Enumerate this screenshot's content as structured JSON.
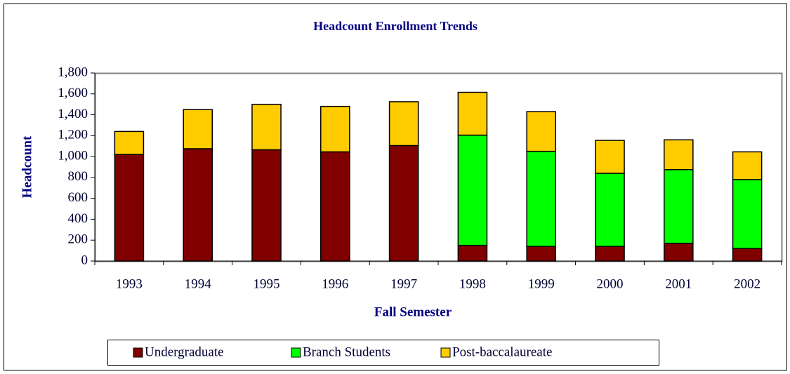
{
  "chart_data": {
    "type": "stacked_bar",
    "title": "Headcount Enrollment Trends",
    "x_label": "Fall Semester",
    "y_label": "Headcount",
    "categories": [
      "1993",
      "1994",
      "1995",
      "1996",
      "1997",
      "1998",
      "1999",
      "2000",
      "2001",
      "2002"
    ],
    "series": [
      {
        "name": "Undergraduate",
        "color": "#800000",
        "values": [
          1020,
          1075,
          1065,
          1045,
          1105,
          150,
          140,
          140,
          170,
          120
        ]
      },
      {
        "name": "Branch Students",
        "color": "#00ff00",
        "values": [
          0,
          0,
          0,
          0,
          0,
          1055,
          910,
          700,
          705,
          660
        ]
      },
      {
        "name": "Post-baccalaureate",
        "color": "#ffcc00",
        "values": [
          220,
          375,
          435,
          435,
          420,
          410,
          380,
          315,
          285,
          265
        ]
      }
    ],
    "ylim": [
      0,
      1800
    ],
    "yticks": [
      0,
      200,
      400,
      600,
      800,
      {
        "value": 1000,
        "label": "1,000"
      },
      {
        "value": 1200,
        "label": "1,200"
      },
      {
        "value": 1400,
        "label": "1,400"
      },
      {
        "value": 1600,
        "label": "1,600"
      },
      {
        "value": 1800,
        "label": "1,800"
      }
    ],
    "legend": "bottom"
  }
}
